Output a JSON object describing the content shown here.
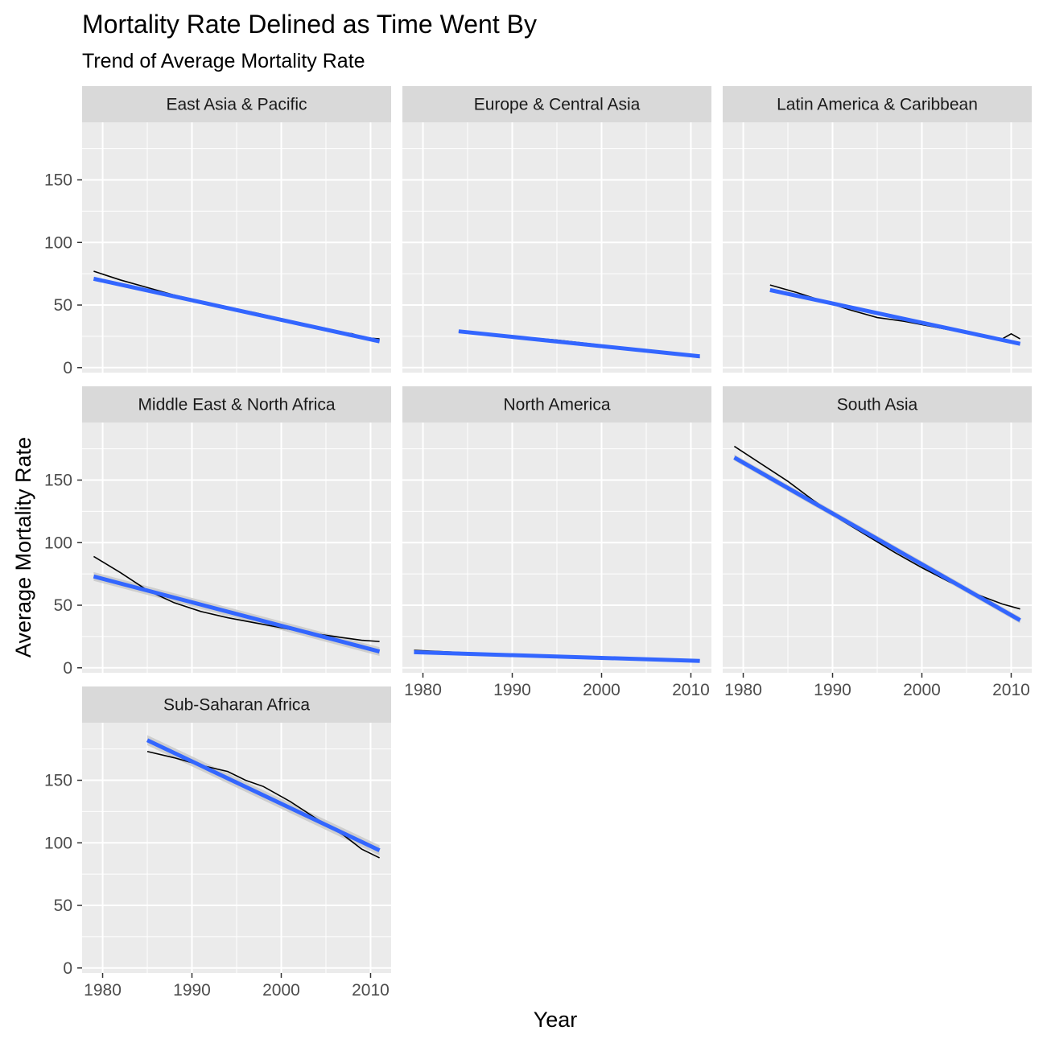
{
  "chart_data": {
    "type": "line",
    "title": "Mortality Rate Delined as Time Went By",
    "subtitle": "Trend of Average Mortality Rate",
    "xlabel": "Year",
    "ylabel": "Average Mortality Rate",
    "xlim": [
      1977.7,
      2012.3
    ],
    "ylim": [
      -4,
      196
    ],
    "x_ticks": [
      1980,
      1990,
      2000,
      2010
    ],
    "y_ticks": [
      0,
      50,
      100,
      150
    ],
    "grid": true,
    "colors": {
      "panel_bg": "#ebebeb",
      "strip_bg": "#d9d9d9",
      "grid": "#ffffff",
      "observed_line": "#000000",
      "trend_line": "#3366ff",
      "confidence_band": "#c7c7c7"
    },
    "facets": [
      {
        "name": "East Asia & Pacific",
        "observed": {
          "x": [
            1979,
            1982,
            1985,
            1988,
            1991,
            1994,
            1997,
            2000,
            2003,
            2006,
            2008,
            2009,
            2011
          ],
          "y": [
            77,
            70,
            64,
            58,
            53,
            48,
            44,
            39,
            34,
            29,
            27,
            24,
            23
          ]
        },
        "trend": {
          "x": [
            1979,
            2011
          ],
          "y": [
            71,
            21
          ]
        },
        "band": 1.5
      },
      {
        "name": "Europe & Central Asia",
        "observed": {
          "x": [
            1984,
            1990,
            1995,
            2000,
            2005,
            2011
          ],
          "y": [
            29,
            25,
            22,
            18,
            14,
            8
          ]
        },
        "trend": {
          "x": [
            1984,
            2011
          ],
          "y": [
            29,
            9
          ]
        },
        "band": 1
      },
      {
        "name": "Latin America & Caribbean",
        "observed": {
          "x": [
            1983,
            1986,
            1989,
            1992,
            1995,
            1998,
            2001,
            2004,
            2007,
            2009,
            2010,
            2011
          ],
          "y": [
            66,
            60,
            53,
            46,
            40,
            37,
            33,
            29,
            25,
            23,
            27,
            23
          ]
        },
        "trend": {
          "x": [
            1983,
            2011
          ],
          "y": [
            62,
            19
          ]
        },
        "band": 1.5
      },
      {
        "name": "Middle East & North Africa",
        "observed": {
          "x": [
            1979,
            1982,
            1985,
            1988,
            1991,
            1994,
            1997,
            2000,
            2003,
            2006,
            2009,
            2011
          ],
          "y": [
            89,
            76,
            62,
            52,
            45,
            40,
            36,
            32,
            28,
            25,
            22,
            21
          ]
        },
        "trend": {
          "x": [
            1979,
            2011
          ],
          "y": [
            73,
            13
          ]
        },
        "band": 3.5
      },
      {
        "name": "North America",
        "observed": {
          "x": [
            1979,
            1985,
            1990,
            1995,
            2000,
            2005,
            2011
          ],
          "y": [
            14,
            12,
            10,
            9,
            8,
            7,
            6
          ]
        },
        "trend": {
          "x": [
            1979,
            2011
          ],
          "y": [
            12.5,
            5.5
          ]
        },
        "band": 1
      },
      {
        "name": "South Asia",
        "observed": {
          "x": [
            1979,
            1982,
            1985,
            1988,
            1991,
            1994,
            1997,
            2000,
            2003,
            2006,
            2009,
            2011
          ],
          "y": [
            177,
            163,
            149,
            133,
            118,
            105,
            92,
            80,
            69,
            59,
            51,
            47
          ]
        },
        "trend": {
          "x": [
            1979,
            2011
          ],
          "y": [
            168,
            38
          ]
        },
        "band": 2.5
      },
      {
        "name": "Sub-Saharan Africa",
        "observed": {
          "x": [
            1985,
            1988,
            1991,
            1994,
            1996,
            1998,
            2001,
            2004,
            2007,
            2009,
            2011
          ],
          "y": [
            173,
            168,
            162,
            157,
            150,
            145,
            133,
            119,
            106,
            95,
            88
          ]
        },
        "trend": {
          "x": [
            1985,
            2011
          ],
          "y": [
            182,
            94
          ]
        },
        "band": 4
      }
    ]
  }
}
